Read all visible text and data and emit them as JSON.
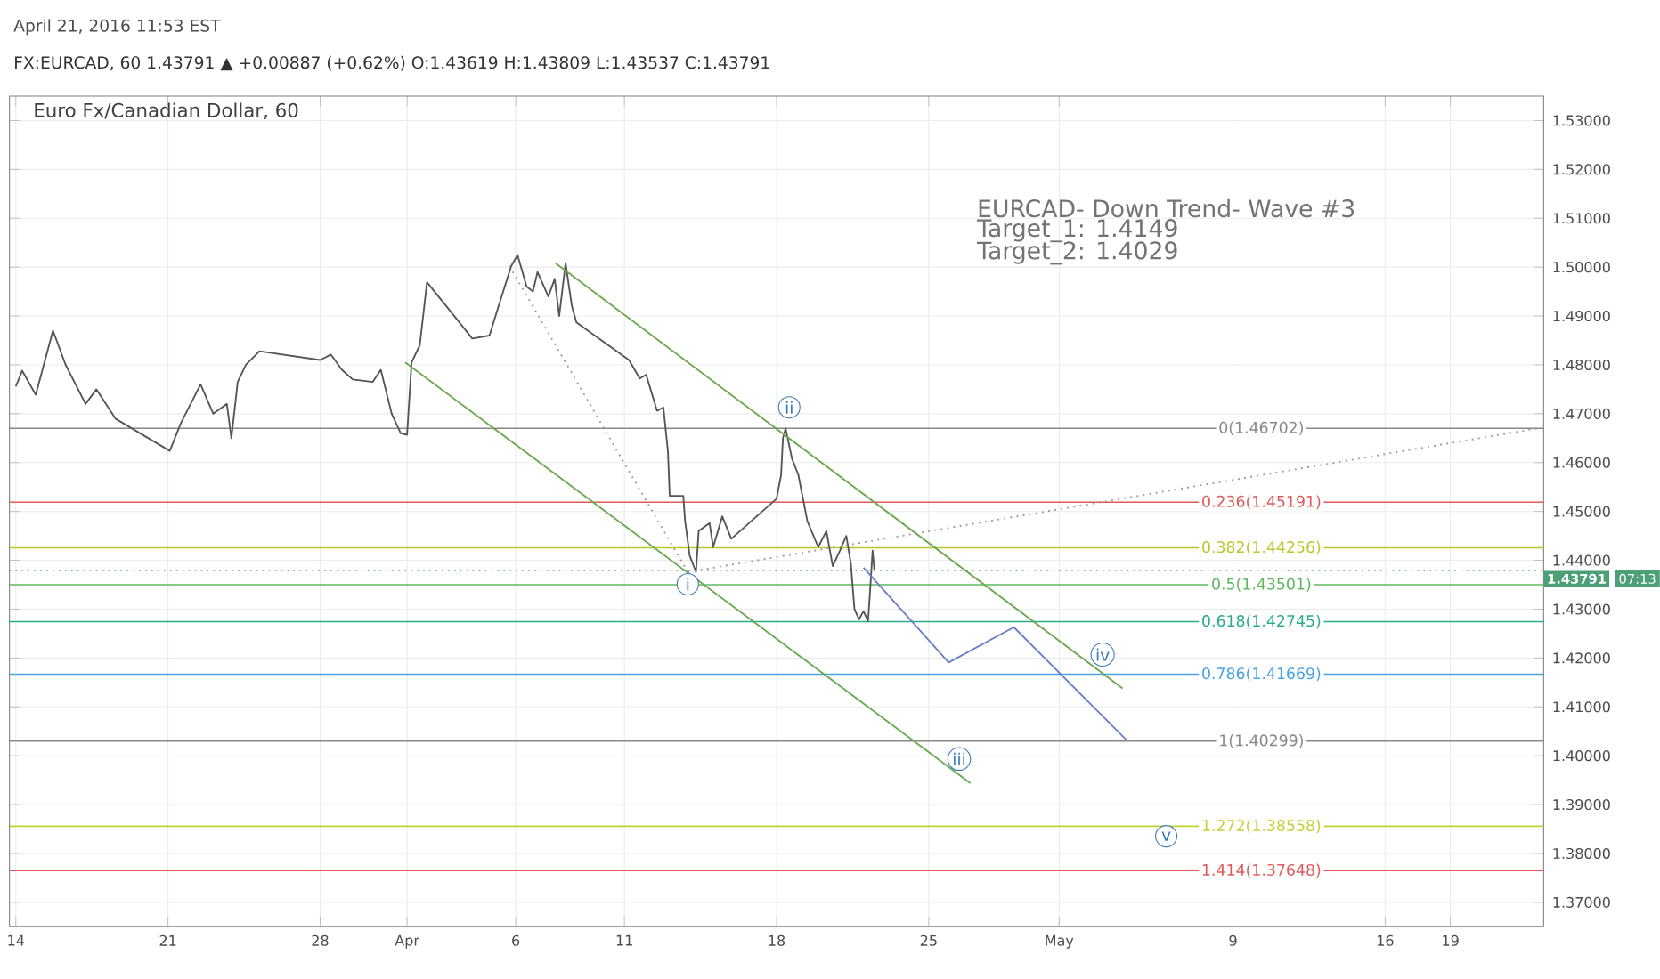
{
  "chart_data": {
    "type": "line",
    "title": "Euro Fx/Canadian Dollar, 60",
    "subtitle": "FX:EURCAD, 60 1.43791 ▲ +0.00887 (+0.62%) O:1.43619 H:1.43809 L:1.43537 C:1.43791",
    "xlim": [
      "2016-03-13T17:00",
      "2016-05-23T07:00"
    ],
    "ylim": [
      1.365,
      1.535
    ],
    "xticks": [
      {
        "value": "2016-03-14",
        "label": "14"
      },
      {
        "value": "2016-03-21",
        "label": "21"
      },
      {
        "value": "2016-03-28",
        "label": "28"
      },
      {
        "value": "2016-04-01",
        "label": "Apr"
      },
      {
        "value": "2016-04-06",
        "label": "6"
      },
      {
        "value": "2016-04-11",
        "label": "11"
      },
      {
        "value": "2016-04-18",
        "label": "18"
      },
      {
        "value": "2016-04-25",
        "label": "25"
      },
      {
        "value": "2016-05-01",
        "label": "May"
      },
      {
        "value": "2016-05-09",
        "label": "9"
      },
      {
        "value": "2016-05-16",
        "label": "16"
      },
      {
        "value": "2016-05-19",
        "label": "19"
      }
    ],
    "yticks": [
      {
        "value": 1.37,
        "label": "1.37000"
      },
      {
        "value": 1.38,
        "label": "1.38000"
      },
      {
        "value": 1.39,
        "label": "1.39000"
      },
      {
        "value": 1.4,
        "label": "1.40000"
      },
      {
        "value": 1.41,
        "label": "1.41000"
      },
      {
        "value": 1.42,
        "label": "1.42000"
      },
      {
        "value": 1.43,
        "label": "1.43000"
      },
      {
        "value": 1.44,
        "label": "1.44000"
      },
      {
        "value": 1.45,
        "label": "1.45000"
      },
      {
        "value": 1.46,
        "label": "1.46000"
      },
      {
        "value": 1.47,
        "label": "1.47000"
      },
      {
        "value": 1.48,
        "label": "1.48000"
      },
      {
        "value": 1.49,
        "label": "1.49000"
      },
      {
        "value": 1.5,
        "label": "1.50000"
      },
      {
        "value": 1.51,
        "label": "1.51000"
      },
      {
        "value": 1.52,
        "label": "1.52000"
      },
      {
        "value": 1.53,
        "label": "1.53000"
      }
    ],
    "grid": true,
    "series": [
      {
        "color": "#555555",
        "x": [
          "2016-03-14T00:00",
          "2016-03-14T07:00",
          "2016-03-14T22:00",
          "2016-03-15T17:00",
          "2016-03-16T07:00",
          "2016-03-17T05:00",
          "2016-03-17T17:00",
          "2016-03-18T14:00",
          "2016-03-21T02:00",
          "2016-03-21T14:00",
          "2016-03-22T12:00",
          "2016-03-23T02:00",
          "2016-03-23T17:00",
          "2016-03-23T22:00",
          "2016-03-24T05:00",
          "2016-03-24T14:00",
          "2016-03-25T05:00",
          "2016-03-28T00:00",
          "2016-03-28T12:00",
          "2016-03-29T00:00",
          "2016-03-29T12:00",
          "2016-03-30T10:00",
          "2016-03-30T19:00",
          "2016-03-31T07:00",
          "2016-03-31T17:00",
          "2016-04-01T00:00",
          "2016-04-01T05:00",
          "2016-04-01T14:00",
          "2016-04-01T22:00",
          "2016-04-04T00:00",
          "2016-04-04T19:00",
          "2016-04-05T05:00",
          "2016-04-05T19:00",
          "2016-04-06T02:00",
          "2016-04-06T12:00",
          "2016-04-06T19:00",
          "2016-04-07T00:00",
          "2016-04-07T12:00",
          "2016-04-07T19:00",
          "2016-04-08T00:00",
          "2016-04-08T07:00",
          "2016-04-08T14:00",
          "2016-04-08T19:00",
          "2016-04-11T05:00",
          "2016-04-11T17:00",
          "2016-04-12T00:00",
          "2016-04-12T12:00",
          "2016-04-12T19:00",
          "2016-04-13T00:00",
          "2016-04-13T02:00",
          "2016-04-13T17:00",
          "2016-04-13T19:00",
          "2016-04-14T00:00",
          "2016-04-14T07:00",
          "2016-04-14T10:00",
          "2016-04-14T22:00",
          "2016-04-15T02:00",
          "2016-04-15T12:00",
          "2016-04-15T22:00",
          "2016-04-18T00:00",
          "2016-04-18T05:00",
          "2016-04-18T07:00",
          "2016-04-18T10:00",
          "2016-04-18T17:00",
          "2016-04-19T00:00",
          "2016-04-19T10:00",
          "2016-04-19T22:00",
          "2016-04-20T07:00",
          "2016-04-20T14:00",
          "2016-04-20T22:00",
          "2016-04-21T05:00",
          "2016-04-21T10:00",
          "2016-04-21T14:00",
          "2016-04-21T19:00",
          "2016-04-22T00:00",
          "2016-04-22T05:00",
          "2016-04-22T07:00",
          "2016-04-22T10:00",
          "2016-04-22T12:00"
        ],
        "values": [
          1.4756,
          1.4788,
          1.4739,
          1.487,
          1.48,
          1.472,
          1.475,
          1.469,
          1.4624,
          1.468,
          1.476,
          1.47,
          1.472,
          1.465,
          1.4765,
          1.48,
          1.4828,
          1.481,
          1.4821,
          1.479,
          1.477,
          1.4765,
          1.479,
          1.47,
          1.466,
          1.4657,
          1.4805,
          1.484,
          1.4969,
          1.4854,
          1.486,
          1.492,
          1.5002,
          1.5025,
          1.496,
          1.495,
          1.499,
          1.494,
          1.4976,
          1.49,
          1.5008,
          1.492,
          1.4887,
          1.481,
          1.4772,
          1.478,
          1.4706,
          1.4713,
          1.4624,
          1.4532,
          1.4532,
          1.448,
          1.441,
          1.4376,
          1.446,
          1.4476,
          1.4427,
          1.449,
          1.4444,
          1.4526,
          1.4575,
          1.465,
          1.467,
          1.4608,
          1.4575,
          1.448,
          1.4427,
          1.446,
          1.4388,
          1.442,
          1.445,
          1.4394,
          1.43,
          1.4279,
          1.4296,
          1.4275,
          1.433,
          1.442,
          1.4379
        ]
      },
      {
        "color": "#6aa84f",
        "x": [
          "2016-03-31T22:00",
          "2016-04-26T22:00"
        ],
        "values": [
          1.4805,
          1.3944
        ]
      },
      {
        "color": "#6aa84f",
        "x": [
          "2016-04-07T20:00",
          "2016-05-03T22:00"
        ],
        "values": [
          1.5008,
          1.4138
        ]
      },
      {
        "color": "#999999",
        "line_style": "dotted",
        "x": [
          "2016-04-05T17:00",
          "2016-04-13T22:00"
        ],
        "values": [
          1.5002,
          1.4376
        ]
      },
      {
        "color": "#999999",
        "line_style": "dotted",
        "x": [
          "2016-04-13T22:00",
          "2016-05-23T00:00"
        ],
        "values": [
          1.4376,
          1.467
        ]
      },
      {
        "color": "#6b7fc4",
        "x": [
          "2016-04-22T00:00",
          "2016-04-25T22:00",
          "2016-04-28T22:00",
          "2016-05-04T02:00"
        ],
        "values": [
          1.4385,
          1.4191,
          1.4263,
          1.4033
        ]
      }
    ],
    "ref_lines": [
      {
        "axis": "y",
        "value": 1.46702,
        "label": "0(1.46702)",
        "color": "#888888"
      },
      {
        "axis": "y",
        "value": 1.45191,
        "label": "0.236(1.45191)",
        "color": "#e05a5a"
      },
      {
        "axis": "y",
        "value": 1.44256,
        "label": "0.382(1.44256)",
        "color": "#b8c82a"
      },
      {
        "axis": "y",
        "value": 1.43501,
        "label": "0.5(1.43501)",
        "color": "#5cb85c"
      },
      {
        "axis": "y",
        "value": 1.42745,
        "label": "0.618(1.42745)",
        "color": "#2bab8c"
      },
      {
        "axis": "y",
        "value": 1.41669,
        "label": "0.786(1.41669)",
        "color": "#4aa3df"
      },
      {
        "axis": "y",
        "value": 1.40299,
        "label": "1(1.40299)",
        "color": "#888888"
      },
      {
        "axis": "y",
        "value": 1.38558,
        "label": "1.272(1.38558)",
        "color": "#c2d136"
      },
      {
        "axis": "y",
        "value": 1.37648,
        "label": "1.414(1.37648)",
        "color": "#e05a5a"
      },
      {
        "axis": "y",
        "value": 1.43791,
        "label": "1.43791",
        "color": "#4c9f77",
        "line_style": "dotted"
      }
    ],
    "annotations": [
      "April 21, 2016 11:53 EST",
      "EURCAD- Down Trend- Wave #3",
      "Target_1: 1.4149",
      "Target_2: 1.4029",
      "07:13",
      {
        "text": "i",
        "x": "2016-04-13T22:00",
        "y": 1.4351
      },
      {
        "text": "ii",
        "x": "2016-04-18T14:00",
        "y": 1.4713
      },
      "iii",
      {
        "text": "iv",
        "x": "2016-05-03T00:00",
        "y": 1.4207
      },
      "v"
    ]
  }
}
